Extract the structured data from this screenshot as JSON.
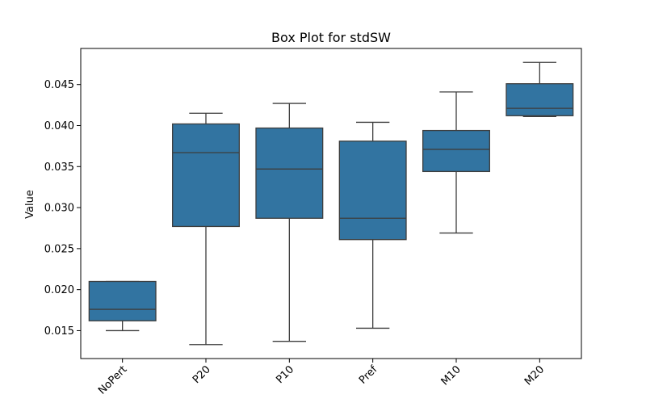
{
  "chart_data": {
    "type": "box",
    "title": "Box Plot for stdSW",
    "xlabel": "",
    "ylabel": "Value",
    "ylim": [
      0.0116,
      0.0494
    ],
    "yticks": [
      0.015,
      0.02,
      0.025,
      0.03,
      0.035,
      0.04,
      0.045
    ],
    "ytick_labels": [
      "0.015",
      "0.020",
      "0.025",
      "0.030",
      "0.035",
      "0.040",
      "0.045"
    ],
    "categories": [
      "NoPert",
      "P20",
      "P10",
      "Pref",
      "M10",
      "M20"
    ],
    "boxes": [
      {
        "category": "NoPert",
        "whisker_low": 0.015,
        "q1": 0.0162,
        "median": 0.0176,
        "q3": 0.021,
        "whisker_high": 0.021
      },
      {
        "category": "P20",
        "whisker_low": 0.0133,
        "q1": 0.0277,
        "median": 0.0367,
        "q3": 0.0402,
        "whisker_high": 0.0415
      },
      {
        "category": "P10",
        "whisker_low": 0.0137,
        "q1": 0.0287,
        "median": 0.0347,
        "q3": 0.0397,
        "whisker_high": 0.0427
      },
      {
        "category": "Pref",
        "whisker_low": 0.0153,
        "q1": 0.0261,
        "median": 0.0287,
        "q3": 0.0381,
        "whisker_high": 0.0404
      },
      {
        "category": "M10",
        "whisker_low": 0.0269,
        "q1": 0.0344,
        "median": 0.0371,
        "q3": 0.0394,
        "whisker_high": 0.0441
      },
      {
        "category": "M20",
        "whisker_low": 0.0411,
        "q1": 0.0412,
        "median": 0.0421,
        "q3": 0.0451,
        "whisker_high": 0.0477
      }
    ],
    "grid": false,
    "legend": "none",
    "colors": {
      "box_fill": "#3274a1",
      "line": "#3d3d3d",
      "axis": "#000000"
    }
  }
}
